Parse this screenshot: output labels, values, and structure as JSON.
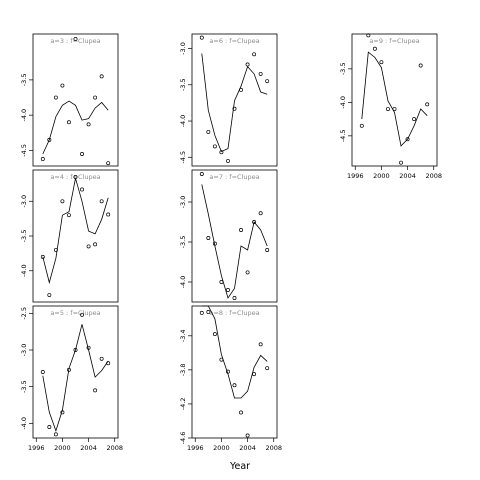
{
  "chart_data": {
    "type": "scatter",
    "xlabel": "Year",
    "ylabel": "",
    "xlim": [
      1995.5,
      2008.5
    ],
    "xticks": [
      1996,
      2000,
      2004,
      2008
    ],
    "grid": false,
    "panels": [
      {
        "label": "a=3  :  f=Clupea",
        "ylim": [
          -4.72,
          -2.85
        ],
        "yticks": [
          -3.5,
          -4.0,
          -4.5
        ],
        "x": [
          1997,
          1998,
          1999,
          2000,
          2001,
          2002,
          2003,
          2004,
          2005,
          2006,
          2007
        ],
        "points": [
          -4.62,
          -4.35,
          -3.75,
          -3.58,
          -4.1,
          -2.92,
          -4.55,
          -4.13,
          -3.75,
          -3.45,
          -4.68
        ],
        "fitted": [
          -4.55,
          -4.35,
          -4.02,
          -3.86,
          -3.8,
          -3.86,
          -4.07,
          -4.05,
          -3.9,
          -3.82,
          -3.93
        ]
      },
      {
        "label": "a=4  :  f=Clupea",
        "ylim": [
          -4.45,
          -2.55
        ],
        "yticks": [
          -3.0,
          -3.5,
          -4.0
        ],
        "x": [
          1997,
          1998,
          1999,
          2000,
          2001,
          2002,
          2003,
          2004,
          2005,
          2006,
          2007
        ],
        "points": [
          -3.8,
          -4.35,
          -3.7,
          -3.0,
          -3.2,
          -2.65,
          -2.83,
          -3.65,
          -3.62,
          -3.0,
          -3.19
        ],
        "fitted": [
          -3.8,
          -4.17,
          -3.82,
          -3.2,
          -3.15,
          -2.67,
          -3.0,
          -3.43,
          -3.47,
          -3.26,
          -2.95
        ]
      },
      {
        "label": "a=5  :  f=Clupea",
        "ylim": [
          -4.2,
          -2.4
        ],
        "yticks": [
          -2.5,
          -3.0,
          -3.5,
          -4.0
        ],
        "x": [
          1997,
          1998,
          1999,
          2000,
          2001,
          2002,
          2003,
          2004,
          2005,
          2006,
          2007
        ],
        "points": [
          -3.3,
          -4.05,
          -4.15,
          -3.85,
          -3.27,
          -3.0,
          -2.52,
          -2.97,
          -3.55,
          -3.12,
          -3.18
        ],
        "fitted": [
          -3.35,
          -3.85,
          -4.1,
          -3.82,
          -3.25,
          -3.0,
          -2.65,
          -3.0,
          -3.37,
          -3.28,
          -3.15
        ]
      },
      {
        "label": "a=6  :  f=Clupea",
        "ylim": [
          -4.62,
          -2.8
        ],
        "yticks": [
          -3.0,
          -3.5,
          -4.0,
          -4.5
        ],
        "x": [
          1997,
          1998,
          1999,
          2000,
          2001,
          2002,
          2003,
          2004,
          2005,
          2006,
          2007
        ],
        "points": [
          -2.85,
          -4.15,
          -4.35,
          -4.43,
          -4.55,
          -3.83,
          -3.57,
          -3.22,
          -3.08,
          -3.35,
          -3.45
        ],
        "fitted": [
          -3.07,
          -3.85,
          -4.2,
          -4.42,
          -4.38,
          -3.72,
          -3.52,
          -3.25,
          -3.35,
          -3.6,
          -3.63
        ]
      },
      {
        "label": "a=7  :  f=Clupea",
        "ylim": [
          -4.25,
          -2.6
        ],
        "yticks": [
          -3.0,
          -3.5,
          -4.0
        ],
        "x": [
          1997,
          1998,
          1999,
          2000,
          2001,
          2002,
          2003,
          2004,
          2005,
          2006,
          2007
        ],
        "points": [
          -2.65,
          -3.45,
          -3.52,
          -4.0,
          -4.1,
          -4.2,
          -3.35,
          -3.88,
          -3.25,
          -3.14,
          -3.6
        ],
        "fitted": [
          -2.78,
          -3.15,
          -3.55,
          -3.92,
          -4.2,
          -4.08,
          -3.55,
          -3.6,
          -3.25,
          -3.35,
          -3.55
        ]
      },
      {
        "label": "a=8  :  f=Clupea",
        "ylim": [
          -4.6,
          -3.05
        ],
        "yticks": [
          -3.4,
          -3.8,
          -4.2,
          -4.6
        ],
        "x": [
          1997,
          1998,
          1999,
          2000,
          2001,
          2002,
          2003,
          2004,
          2005,
          2006,
          2007
        ],
        "points": [
          -3.13,
          -3.12,
          -3.38,
          -3.68,
          -3.82,
          -3.98,
          -4.3,
          -4.57,
          -3.85,
          -3.5,
          -3.78
        ],
        "fitted": [
          -3.05,
          -3.05,
          -3.2,
          -3.62,
          -3.85,
          -4.13,
          -4.13,
          -4.05,
          -3.77,
          -3.63,
          -3.7
        ]
      },
      {
        "label": "a=9  :  f=Clupea",
        "ylim": [
          -4.95,
          -2.98
        ],
        "yticks": [
          -3.5,
          -4.0,
          -4.5
        ],
        "x": [
          1997,
          1998,
          1999,
          2000,
          2001,
          2002,
          2003,
          2004,
          2005,
          2006,
          2007
        ],
        "points": [
          -4.35,
          -3.0,
          -3.2,
          -3.4,
          -4.1,
          -4.1,
          -4.9,
          -4.55,
          -4.25,
          -3.45,
          -4.03
        ],
        "fitted": [
          -4.25,
          -3.25,
          -3.33,
          -3.48,
          -3.98,
          -4.15,
          -4.65,
          -4.55,
          -4.35,
          -4.1,
          -4.2
        ]
      }
    ]
  }
}
